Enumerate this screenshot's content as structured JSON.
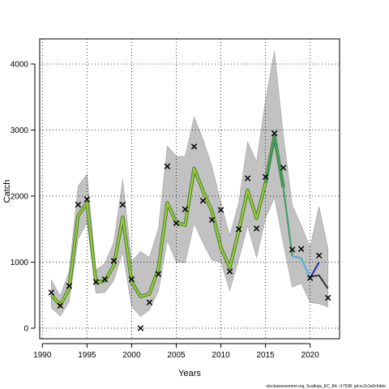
{
  "chart_data": {
    "type": "line",
    "xlabel": "Years",
    "ylabel": "Catch",
    "xlim": [
      1989.7,
      2023.3
    ],
    "ylim": [
      -160,
      4380
    ],
    "x_ticks": [
      1990,
      1995,
      2000,
      2005,
      2010,
      2015,
      2020
    ],
    "y_ticks": [
      0,
      1000,
      2000,
      3000,
      4000
    ],
    "grid": "dotted",
    "years": [
      1991,
      1992,
      1993,
      1994,
      1995,
      1996,
      1997,
      1998,
      1999,
      2000,
      2001,
      2002,
      2003,
      2004,
      2005,
      2006,
      2007,
      2008,
      2009,
      2010,
      2011,
      2012,
      2013,
      2014,
      2015,
      2016,
      2017,
      2018,
      2019,
      2020,
      2021,
      2022
    ],
    "observed": [
      540,
      340,
      640,
      1870,
      1950,
      700,
      740,
      1020,
      1870,
      740,
      0,
      390,
      820,
      2450,
      1590,
      1800,
      2750,
      1930,
      1640,
      1790,
      860,
      1500,
      2270,
      1510,
      2290,
      2950,
      2430,
      1190,
      1200,
      760,
      1100,
      460
    ],
    "ci_lower": [
      310,
      180,
      400,
      1350,
      1600,
      530,
      540,
      720,
      1150,
      330,
      180,
      280,
      560,
      1330,
      1000,
      990,
      1590,
      1290,
      1030,
      1000,
      570,
      1040,
      1550,
      1070,
      1660,
      1980,
      1280,
      620,
      680,
      390,
      370,
      320
    ],
    "ci_upper": [
      730,
      490,
      860,
      2150,
      2330,
      880,
      980,
      1300,
      2250,
      1010,
      1160,
      1070,
      1510,
      2760,
      2600,
      2600,
      3200,
      2860,
      2450,
      1900,
      1400,
      1900,
      2820,
      2520,
      3450,
      4200,
      2920,
      1860,
      1560,
      1230,
      1840,
      1210
    ],
    "series": [
      {
        "name": "",
        "color": "#9ACD32",
        "years": [
          1991,
          1992,
          1993,
          1994,
          1995,
          1996,
          1997,
          1998,
          1999,
          2000,
          2001,
          2002,
          2003,
          2004,
          2005,
          2006,
          2007,
          2008,
          2009,
          2010,
          2011,
          2012,
          2013,
          2014,
          2015,
          2016,
          2017
        ],
        "values": [
          500,
          350,
          600,
          1700,
          1900,
          690,
          720,
          950,
          1680,
          700,
          480,
          520,
          900,
          1900,
          1600,
          1560,
          2420,
          2080,
          1770,
          1220,
          920,
          1470,
          2090,
          1660,
          2200,
          2910,
          2130
        ]
      },
      {
        "name": "",
        "color": "#3A9A6A",
        "years": [
          2015,
          2016,
          2017,
          2018
        ],
        "values": [
          2200,
          2910,
          2130,
          1090
        ]
      },
      {
        "name": "",
        "color": "#4EA8E0",
        "years": [
          2018,
          2019,
          2020
        ],
        "values": [
          1090,
          1060,
          760
        ]
      },
      {
        "name": "",
        "color": "#2B2BB0",
        "years": [
          2020,
          2021
        ],
        "values": [
          760,
          1000
        ]
      },
      {
        "name": "",
        "color": "#333333",
        "years": [
          2020,
          2021,
          2022
        ],
        "values": [
          780,
          800,
          600
        ]
      }
    ]
  },
  "footnote": "stockassessment.org, Scallops_EC_B4, r17538, git:ec2c2a0c6dde"
}
